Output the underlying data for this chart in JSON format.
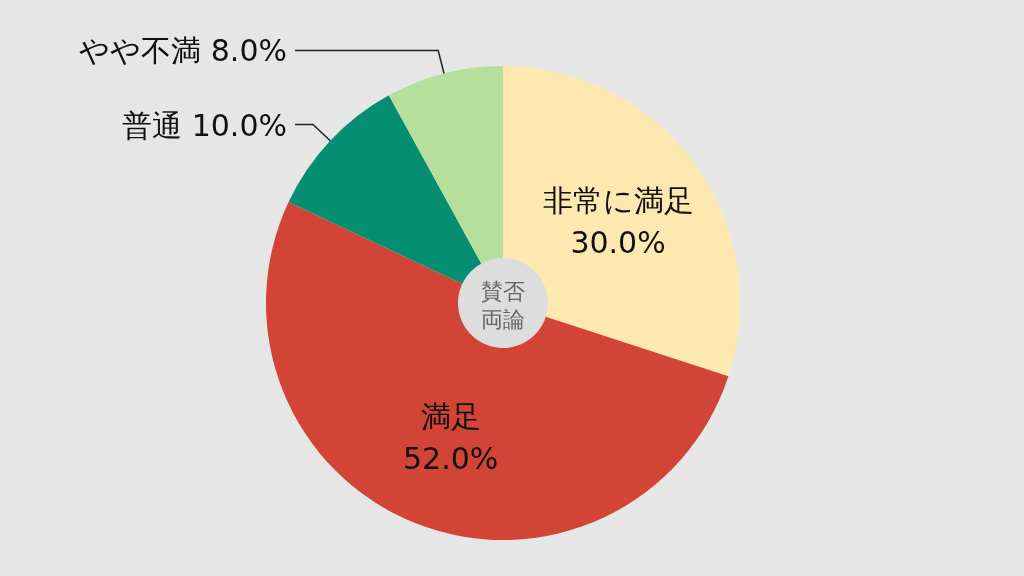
{
  "chart_data": {
    "type": "pie",
    "categories": [
      "非常に満足",
      "満足",
      "普通",
      "やや不満"
    ],
    "values": [
      30,
      52,
      10,
      8
    ],
    "colors": [
      "#fde9b0",
      "#d14436",
      "#068e73",
      "#b5df9a"
    ],
    "value_labels": [
      "30.0%",
      "52.0%",
      "10.0%",
      "8.0%"
    ],
    "annotations": [
      "賛否両論"
    ]
  }
}
